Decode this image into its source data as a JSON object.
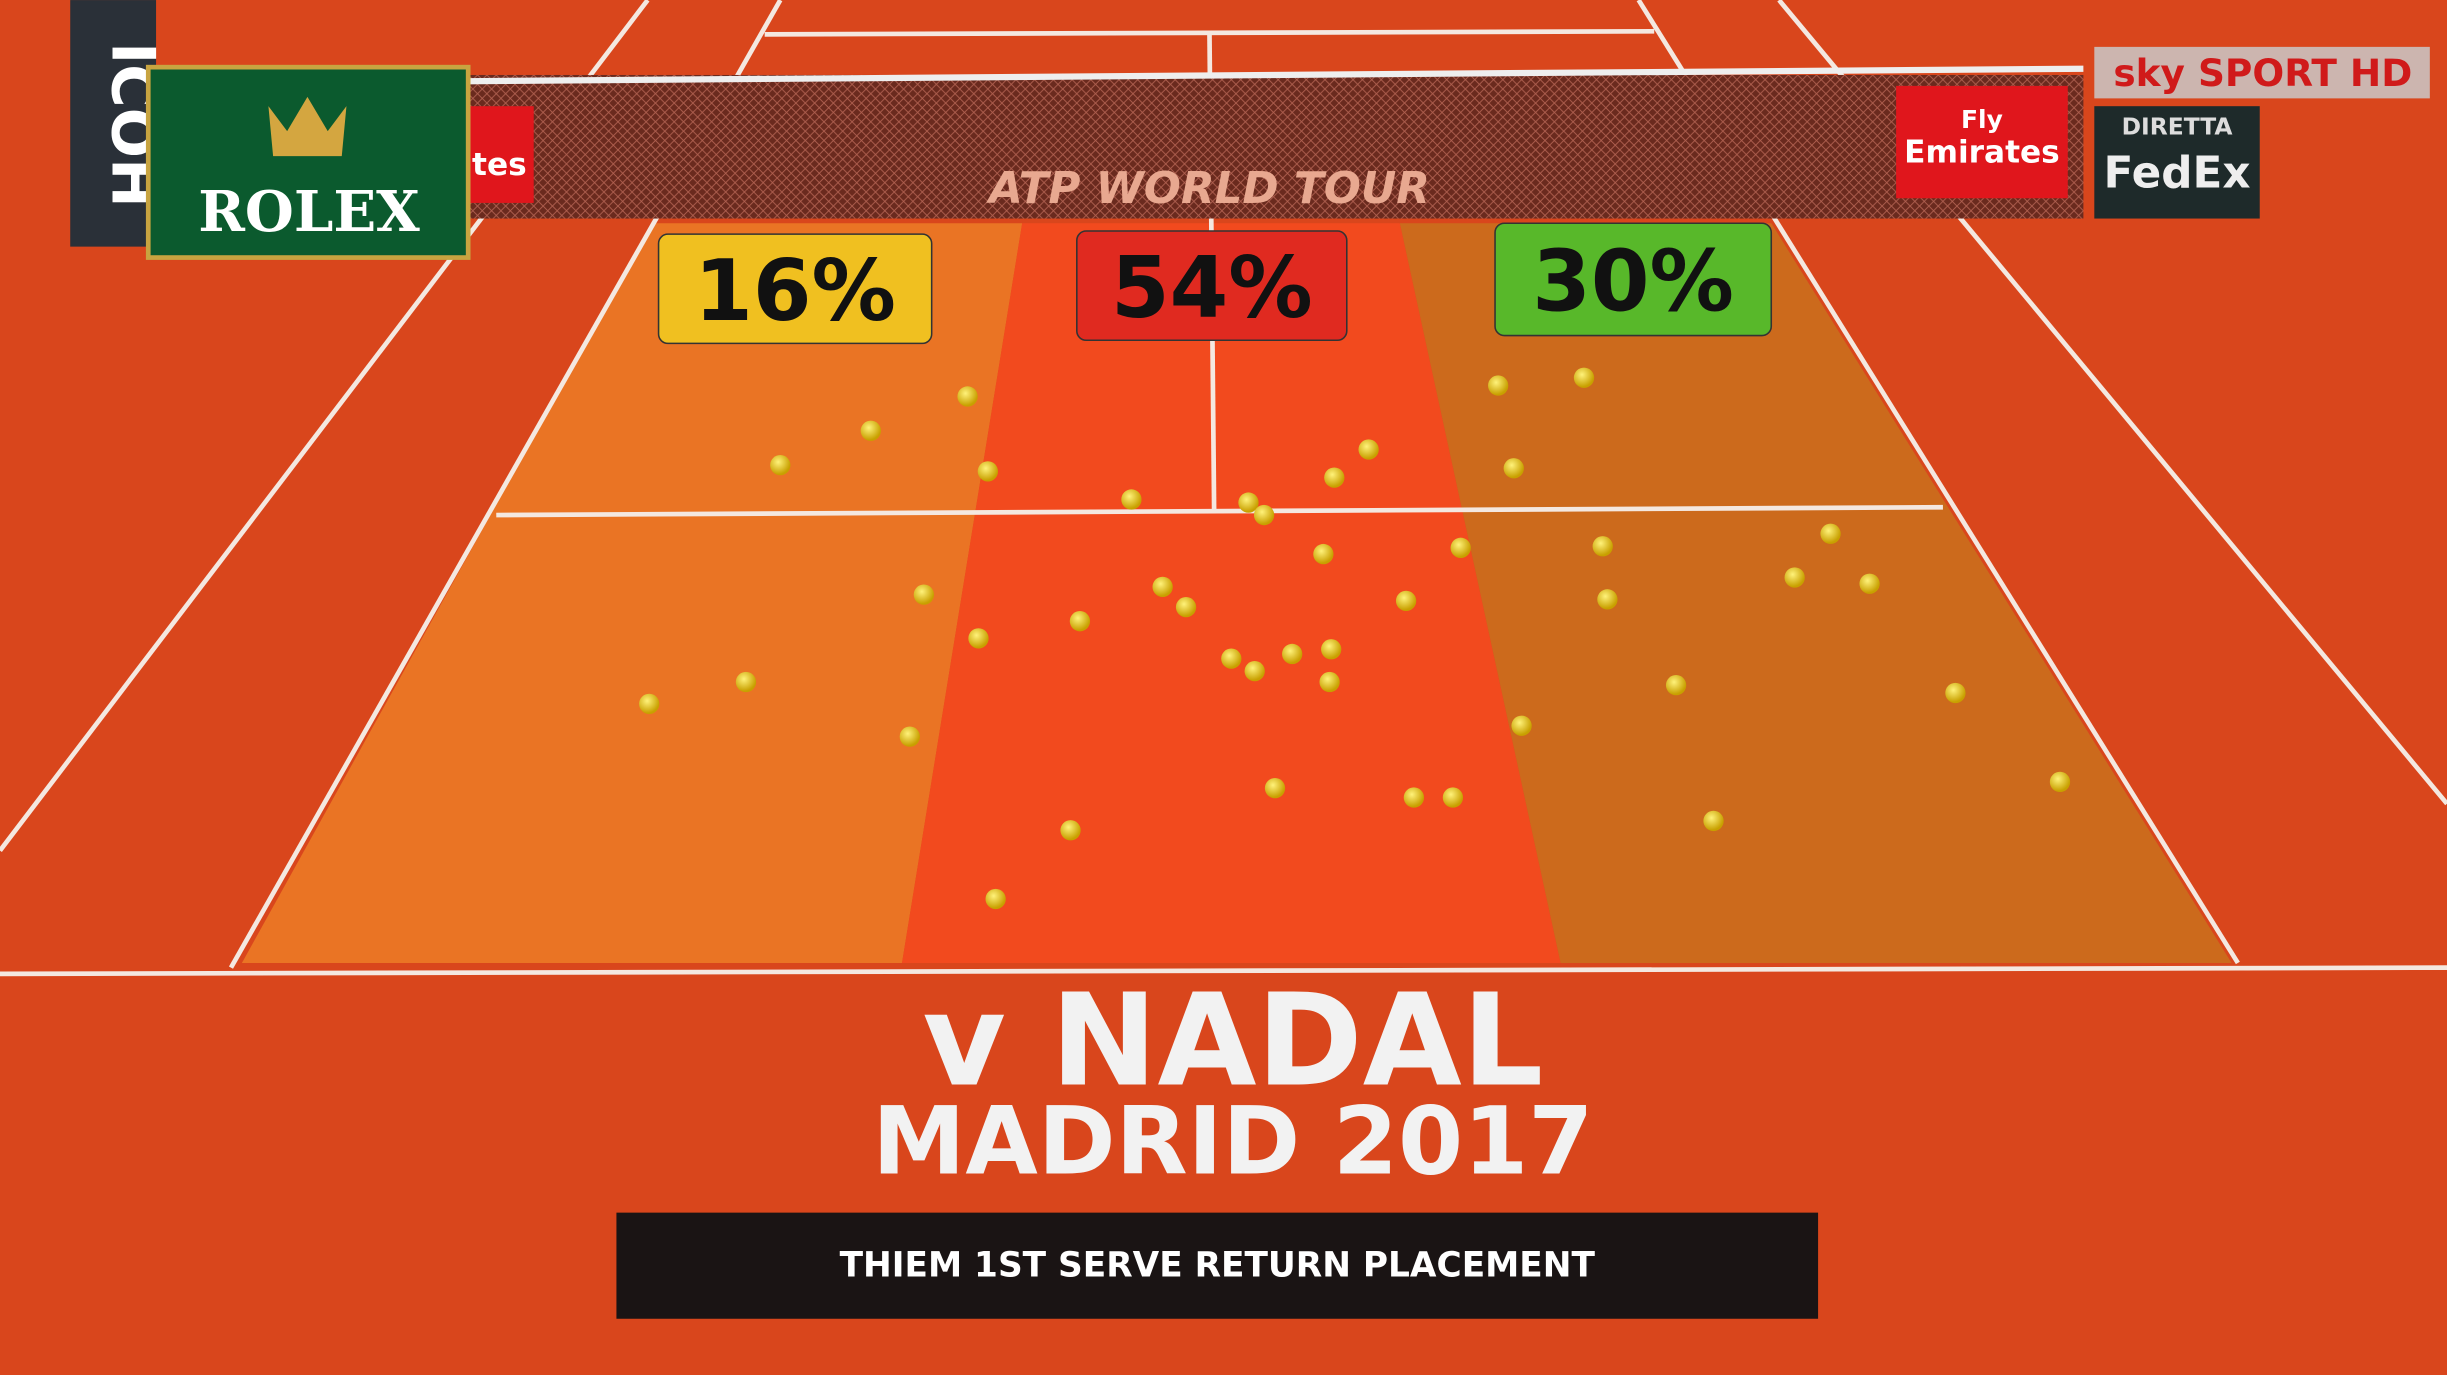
{
  "sponsors": {
    "rolex": "ROLEX",
    "emirates_fly": "Fly",
    "emirates": "Emirates",
    "emirates_left": "tes",
    "ricoh": "ICOH",
    "net_banner": "ATP WORLD TOUR",
    "broadcaster": "sky SPORT HD",
    "diretta": "DIRETTA",
    "fedex": "FedEx"
  },
  "zones": [
    {
      "label": "16%",
      "color": "#f0c020"
    },
    {
      "label": "54%",
      "color": "#e02a20"
    },
    {
      "label": "30%",
      "color": "#58b82a"
    }
  ],
  "headline": "v NADAL",
  "subheadline": "MADRID 2017",
  "caption": "THIEM 1ST SERVE RETURN PLACEMENT"
}
